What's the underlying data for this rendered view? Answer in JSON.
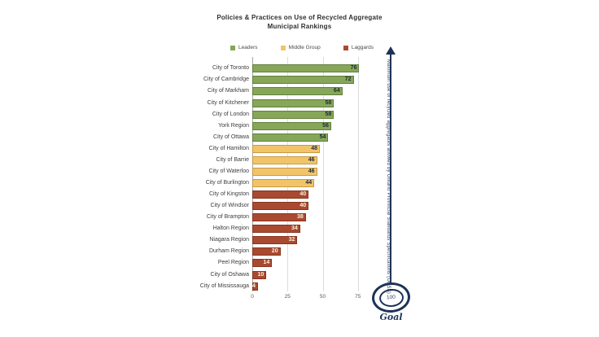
{
  "chart_data": {
    "type": "bar",
    "orientation": "horizontal",
    "title": "Policies & Practices on Use of Recycled Aggregate",
    "subtitle": "Municipal Rankings",
    "xlim": [
      0,
      100
    ],
    "x_ticks": [
      0,
      25,
      50,
      75,
      100
    ],
    "grid": "vertical",
    "legend_position": "top",
    "legend": [
      {
        "id": "leaders",
        "label": "Leaders",
        "fill": "#86a758",
        "border": "#617f3d",
        "value_color": "#1e2b3c"
      },
      {
        "id": "middle",
        "label": "Middle Group",
        "fill": "#f2c46a",
        "border": "#c79b44",
        "value_color": "#1e2b3c"
      },
      {
        "id": "laggards",
        "label": "Laggards",
        "fill": "#a94a30",
        "border": "#84361f",
        "value_color": "#faf0dc"
      }
    ],
    "bars": [
      {
        "label": "City of Toronto",
        "value": 76,
        "group": "leaders"
      },
      {
        "label": "City of Cambridge",
        "value": 72,
        "group": "leaders"
      },
      {
        "label": "City of Markham",
        "value": 64,
        "group": "leaders"
      },
      {
        "label": "City of Kitchener",
        "value": 58,
        "group": "leaders"
      },
      {
        "label": "City of London",
        "value": 58,
        "group": "leaders"
      },
      {
        "label": "York Region",
        "value": 56,
        "group": "leaders"
      },
      {
        "label": "City of Ottawa",
        "value": 54,
        "group": "leaders"
      },
      {
        "label": "City of Hamilton",
        "value": 48,
        "group": "middle"
      },
      {
        "label": "City of Barrie",
        "value": 46,
        "group": "middle"
      },
      {
        "label": "City of Waterloo",
        "value": 46,
        "group": "middle"
      },
      {
        "label": "City of Burlington",
        "value": 44,
        "group": "middle"
      },
      {
        "label": "City of Kingston",
        "value": 40,
        "group": "laggards"
      },
      {
        "label": "City of Windsor",
        "value": 40,
        "group": "laggards"
      },
      {
        "label": "City of Brampton",
        "value": 38,
        "group": "laggards"
      },
      {
        "label": "Halton Region",
        "value": 34,
        "group": "laggards"
      },
      {
        "label": "Niagara Region",
        "value": 32,
        "group": "laggards"
      },
      {
        "label": "Durham Region",
        "value": 20,
        "group": "laggards"
      },
      {
        "label": "Peel Region",
        "value": 14,
        "group": "laggards"
      },
      {
        "label": "City of Oshawa",
        "value": 10,
        "group": "laggards"
      },
      {
        "label": "City of Mississauga",
        "value": 4,
        "group": "laggards"
      }
    ],
    "annotation": "Maximum use of recycled aggregates allowed by Ontario Provincial Standards Specifications (OPSS)",
    "goal": {
      "value": "100",
      "label": "Goal"
    },
    "colors": {
      "accent_navy": "#1d3356",
      "gridline": "#dcdcdc",
      "axis_line": "#a6a6a6"
    }
  }
}
